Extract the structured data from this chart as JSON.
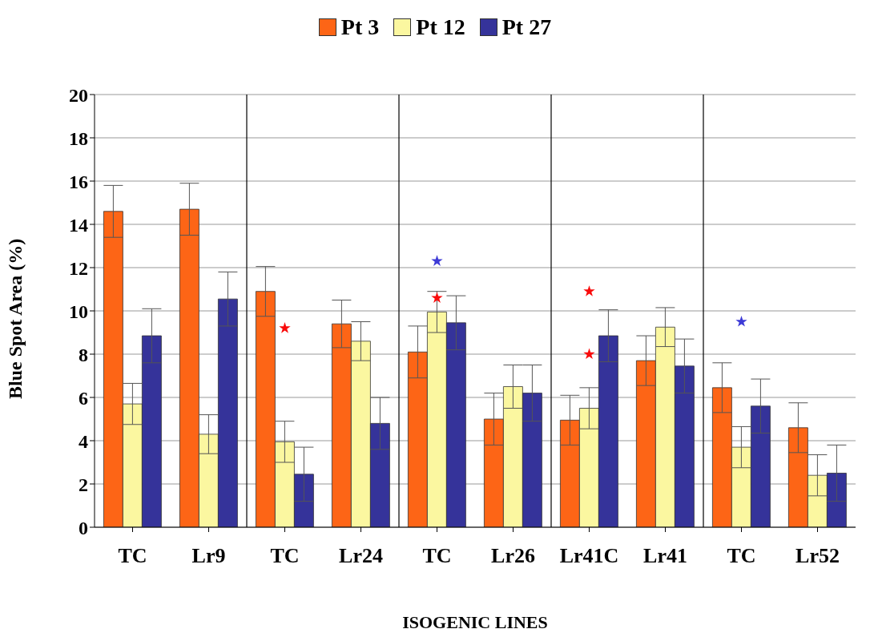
{
  "chart_data": {
    "type": "bar",
    "xlabel": "ISOGENIC LINES",
    "ylabel": "Blue Spot Area (%)",
    "categories": [
      "TC",
      "Lr9",
      "TC",
      "Lr24",
      "TC",
      "Lr26",
      "Lr41C",
      "Lr41",
      "TC",
      "Lr52"
    ],
    "series": [
      {
        "name": "Pt 3",
        "color": "#fd6516",
        "values": [
          14.6,
          14.7,
          10.9,
          9.4,
          8.1,
          5.0,
          4.95,
          7.7,
          6.45,
          4.6
        ],
        "errors": [
          1.2,
          1.2,
          1.15,
          1.1,
          1.2,
          1.2,
          1.15,
          1.15,
          1.15,
          1.15
        ]
      },
      {
        "name": "Pt 12",
        "color": "#fbf7a0",
        "values": [
          5.7,
          4.3,
          3.95,
          8.6,
          9.95,
          6.5,
          5.5,
          9.25,
          3.7,
          2.4
        ],
        "errors": [
          0.95,
          0.9,
          0.95,
          0.9,
          0.95,
          1.0,
          0.95,
          0.9,
          0.95,
          0.95
        ]
      },
      {
        "name": "Pt 27",
        "color": "#35339a",
        "values": [
          8.85,
          10.55,
          2.45,
          4.8,
          9.45,
          6.2,
          8.85,
          7.45,
          5.6,
          2.5
        ],
        "errors": [
          1.25,
          1.25,
          1.25,
          1.2,
          1.25,
          1.3,
          1.2,
          1.25,
          1.25,
          1.3
        ]
      },
      {
        "type": "scatter",
        "marker": "star",
        "color": "#f90b0b",
        "values": [
          null,
          null,
          9.2,
          null,
          10.6,
          null,
          8.0,
          null,
          null,
          null
        ]
      },
      {
        "type": "scatter",
        "marker": "star",
        "color": "#f90b0b",
        "values": [
          null,
          null,
          null,
          null,
          null,
          null,
          10.9,
          null,
          null,
          null
        ]
      },
      {
        "type": "scatter",
        "marker": "star",
        "color": "#3d3ad6",
        "values": [
          null,
          null,
          null,
          null,
          12.3,
          null,
          null,
          null,
          9.5,
          null
        ]
      }
    ],
    "ylim": [
      0,
      20
    ],
    "yticks": [
      0,
      2,
      4,
      6,
      8,
      10,
      12,
      14,
      16,
      18,
      20
    ],
    "grid": "y",
    "legend": "top"
  }
}
